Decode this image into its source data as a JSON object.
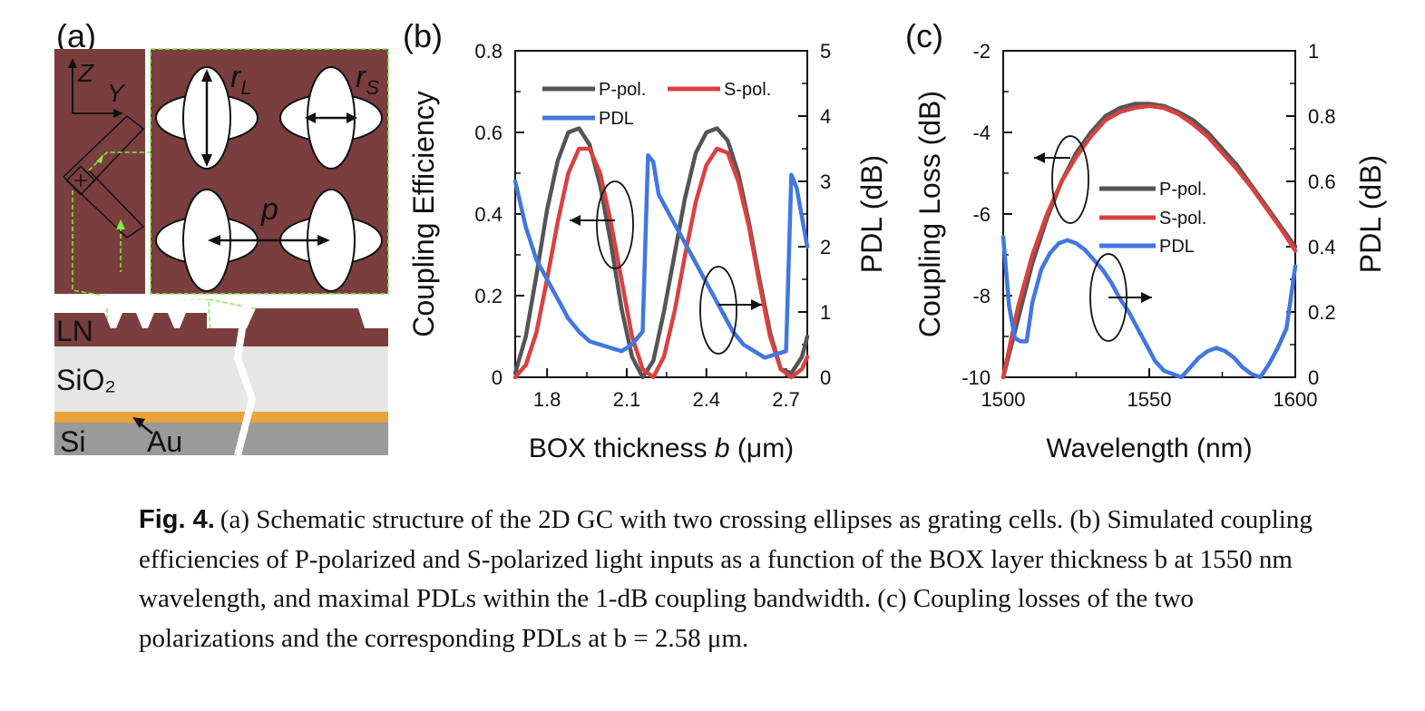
{
  "panels": {
    "a": {
      "label": "(a)",
      "axis_z": "Z",
      "axis_y": "Y",
      "r_l": "r",
      "r_l_sub": "L",
      "r_s": "r",
      "r_s_sub": "S",
      "period": "p",
      "layer_ln": "LN",
      "layer_sio2": "SiO₂",
      "layer_si": "Si",
      "layer_au": "Au",
      "colors": {
        "ln": "#7a3e3e",
        "sio2": "#e6e6e6",
        "si": "#9a9a9a",
        "au": "#e7a43a",
        "guide": "#7cf04a"
      }
    },
    "b": {
      "label": "(b)",
      "arrow_left": "left",
      "arrow_right": "right"
    },
    "c": {
      "label": "(c)",
      "arrow_left": "left",
      "arrow_right": "right"
    }
  },
  "chart_data": [
    {
      "type": "line",
      "panel": "b",
      "xlabel": "BOX thickness ",
      "xlabel_italic": "b",
      "xlabel_unit": " (μm)",
      "ylabel": "Coupling Efficiency",
      "y2label": "PDL (dB)",
      "xlim": [
        1.68,
        2.78
      ],
      "ylim": [
        0,
        0.8
      ],
      "y2lim": [
        0,
        5
      ],
      "xticks": [
        "1.8",
        "2.1",
        "2.4",
        "2.7"
      ],
      "yticks": [
        "0",
        "0.2",
        "0.4",
        "0.6",
        "0.8"
      ],
      "y2ticks": [
        "0",
        "1",
        "2",
        "3",
        "4",
        "5"
      ],
      "legend_position": "top-left",
      "series": [
        {
          "name": "P-pol.",
          "color": "#555555",
          "axis": "left",
          "x": [
            1.68,
            1.72,
            1.76,
            1.8,
            1.84,
            1.88,
            1.92,
            1.96,
            2.0,
            2.04,
            2.08,
            2.12,
            2.16,
            2.2,
            2.24,
            2.28,
            2.32,
            2.36,
            2.4,
            2.44,
            2.48,
            2.52,
            2.56,
            2.6,
            2.64,
            2.68,
            2.72,
            2.76,
            2.78
          ],
          "values": [
            0.01,
            0.1,
            0.25,
            0.41,
            0.53,
            0.6,
            0.61,
            0.57,
            0.47,
            0.33,
            0.17,
            0.05,
            0.0,
            0.04,
            0.16,
            0.3,
            0.44,
            0.55,
            0.6,
            0.61,
            0.58,
            0.5,
            0.38,
            0.24,
            0.11,
            0.02,
            0.01,
            0.05,
            0.1
          ]
        },
        {
          "name": "S-pol.",
          "color": "#d94141",
          "axis": "left",
          "x": [
            1.68,
            1.72,
            1.76,
            1.8,
            1.84,
            1.88,
            1.92,
            1.96,
            2.0,
            2.04,
            2.08,
            2.12,
            2.16,
            2.2,
            2.24,
            2.28,
            2.32,
            2.36,
            2.4,
            2.44,
            2.48,
            2.52,
            2.56,
            2.6,
            2.64,
            2.68,
            2.72,
            2.76,
            2.78
          ],
          "values": [
            0.0,
            0.03,
            0.11,
            0.24,
            0.38,
            0.5,
            0.56,
            0.56,
            0.5,
            0.38,
            0.24,
            0.1,
            0.02,
            0.0,
            0.05,
            0.16,
            0.3,
            0.43,
            0.52,
            0.56,
            0.55,
            0.48,
            0.37,
            0.23,
            0.1,
            0.02,
            0.0,
            0.02,
            0.05
          ]
        },
        {
          "name": "PDL",
          "color": "#4177e0",
          "axis": "right",
          "x": [
            1.68,
            1.72,
            1.76,
            1.8,
            1.84,
            1.88,
            1.92,
            1.96,
            2.0,
            2.04,
            2.08,
            2.12,
            2.16,
            2.18,
            2.2,
            2.22,
            2.26,
            2.3,
            2.34,
            2.38,
            2.42,
            2.46,
            2.5,
            2.54,
            2.58,
            2.62,
            2.66,
            2.7,
            2.72,
            2.74,
            2.78
          ],
          "values": [
            3.0,
            2.3,
            1.8,
            1.5,
            1.2,
            0.9,
            0.7,
            0.55,
            0.5,
            0.45,
            0.4,
            0.5,
            0.7,
            3.4,
            3.3,
            2.8,
            2.5,
            2.2,
            1.9,
            1.6,
            1.3,
            1.0,
            0.7,
            0.5,
            0.4,
            0.3,
            0.35,
            0.4,
            3.1,
            2.9,
            2.0
          ]
        }
      ]
    },
    {
      "type": "line",
      "panel": "c",
      "xlabel": "Wavelength (nm)",
      "ylabel": "Coupling Loss (dB)",
      "y2label": "PDL (dB)",
      "xlim": [
        1500,
        1600
      ],
      "ylim": [
        -10,
        -2
      ],
      "y2lim": [
        0,
        1
      ],
      "xticks": [
        "1500",
        "1550",
        "1600"
      ],
      "yticks": [
        "-10",
        "-8",
        "-6",
        "-4",
        "-2"
      ],
      "y2ticks": [
        "0",
        "0.2",
        "0.4",
        "0.6",
        "0.8",
        "1"
      ],
      "legend_position": "center-right",
      "series": [
        {
          "name": "P-pol.",
          "color": "#555555",
          "axis": "left",
          "x": [
            1500,
            1505,
            1510,
            1515,
            1520,
            1525,
            1530,
            1535,
            1540,
            1545,
            1550,
            1555,
            1560,
            1565,
            1570,
            1575,
            1580,
            1585,
            1590,
            1595,
            1600
          ],
          "values": [
            -10.2,
            -8.6,
            -7.2,
            -6.1,
            -5.2,
            -4.5,
            -4.0,
            -3.6,
            -3.4,
            -3.3,
            -3.3,
            -3.35,
            -3.5,
            -3.7,
            -4.0,
            -4.4,
            -4.8,
            -5.3,
            -5.8,
            -6.3,
            -6.8
          ]
        },
        {
          "name": "S-pol.",
          "color": "#d94141",
          "axis": "left",
          "x": [
            1500,
            1505,
            1510,
            1515,
            1520,
            1525,
            1530,
            1535,
            1540,
            1545,
            1550,
            1555,
            1560,
            1565,
            1570,
            1575,
            1580,
            1585,
            1590,
            1595,
            1600
          ],
          "values": [
            -10.0,
            -8.3,
            -7.0,
            -6.0,
            -5.2,
            -4.6,
            -4.1,
            -3.7,
            -3.5,
            -3.4,
            -3.35,
            -3.4,
            -3.55,
            -3.8,
            -4.1,
            -4.5,
            -4.9,
            -5.35,
            -5.85,
            -6.35,
            -6.9
          ]
        },
        {
          "name": "PDL",
          "color": "#4177e0",
          "axis": "right",
          "x": [
            1500,
            1502,
            1504,
            1506,
            1508,
            1510,
            1513,
            1516,
            1519,
            1522,
            1525,
            1528,
            1531,
            1534,
            1537,
            1540,
            1543,
            1546,
            1549,
            1552,
            1555,
            1558,
            1561,
            1564,
            1567,
            1570,
            1573,
            1576,
            1579,
            1582,
            1585,
            1588,
            1591,
            1594,
            1597,
            1600
          ],
          "values": [
            0.43,
            0.22,
            0.12,
            0.11,
            0.11,
            0.23,
            0.33,
            0.38,
            0.41,
            0.42,
            0.41,
            0.39,
            0.36,
            0.33,
            0.29,
            0.24,
            0.2,
            0.15,
            0.1,
            0.05,
            0.02,
            0.01,
            0.0,
            0.03,
            0.06,
            0.08,
            0.09,
            0.08,
            0.06,
            0.03,
            0.01,
            0.0,
            0.04,
            0.09,
            0.15,
            0.34
          ]
        }
      ]
    }
  ],
  "caption": {
    "label": "Fig. 4.",
    "text": "(a) Schematic structure of the 2D GC with two crossing ellipses as grating cells. (b) Simulated coupling efficiencies of P-polarized and S-polarized light inputs as a function of the BOX layer thickness b at 1550 nm wavelength, and maximal PDLs within the 1-dB coupling bandwidth. (c) Coupling losses of the two polarizations and the corresponding PDLs at b = 2.58 μm."
  }
}
